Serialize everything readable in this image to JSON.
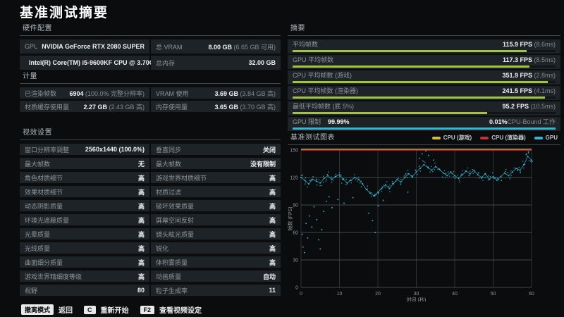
{
  "title": "基准测试摘要",
  "hardware": {
    "header": "硬件配置",
    "cells": [
      {
        "label": "GPU",
        "value": "NVIDIA GeForce RTX 2080 SUPER",
        "muted": ""
      },
      {
        "label": "总 VRAM",
        "value": "8.00 GB",
        "muted": "(6.65 GB 可用)"
      },
      {
        "label": "CPU",
        "value": "Intel(R) Core(TM) i5-9600KF CPU @ 3.70GHz",
        "muted": ""
      },
      {
        "label": "总内存",
        "value": "32.00 GB",
        "muted": ""
      }
    ]
  },
  "metrics": {
    "header": "计量",
    "cells": [
      {
        "label": "已渲染帧数",
        "value": "6904",
        "muted": "(100.0% 完整分辨率)"
      },
      {
        "label": "VRAM 使用",
        "value": "3.69 GB",
        "muted": "(3.84 GB 高)"
      },
      {
        "label": "材质缓存使用量",
        "value": "2.27 GB",
        "muted": "(2.43 GB 高)"
      },
      {
        "label": "内存使用量",
        "value": "3.65 GB",
        "muted": "(3.70 GB 高)"
      }
    ]
  },
  "settings": {
    "header": "视效设置",
    "left": [
      {
        "label": "窗口分辨率调整",
        "value": "2560x1440 (100.0%)"
      },
      {
        "label": "最大帧数",
        "value": "无"
      },
      {
        "label": "角色材质细节",
        "value": "高"
      },
      {
        "label": "效果材质细节",
        "value": "高"
      },
      {
        "label": "动态阴影质量",
        "value": "高"
      },
      {
        "label": "环境光遮蔽质量",
        "value": "高"
      },
      {
        "label": "光晕质量",
        "value": "高"
      },
      {
        "label": "光线质量",
        "value": "高"
      },
      {
        "label": "曲面细分质量",
        "value": "高"
      },
      {
        "label": "游戏世界精细度等级",
        "value": "高"
      },
      {
        "label": "视野",
        "value": "80"
      }
    ],
    "right": [
      {
        "label": "垂直同步",
        "value": "关闭"
      },
      {
        "label": "最大帧数",
        "value": "没有限制"
      },
      {
        "label": "游戏世界材质细节",
        "value": "高"
      },
      {
        "label": "材质过滤",
        "value": "高"
      },
      {
        "label": "破坏效果质量",
        "value": "高"
      },
      {
        "label": "屏幕空间反射",
        "value": "高"
      },
      {
        "label": "镜头眩光质量",
        "value": "高"
      },
      {
        "label": "锐化",
        "value": "高"
      },
      {
        "label": "体积雾质量",
        "value": "高"
      },
      {
        "label": "动画质量",
        "value": "自动"
      },
      {
        "label": "粒子生成率",
        "value": "11"
      }
    ]
  },
  "summary": {
    "header": "摘要",
    "rows": [
      {
        "label": "平均帧数",
        "value": "115.9 FPS",
        "muted": "(8.6ms)",
        "bar": 0.89,
        "color": "#a3c53d"
      },
      {
        "label": "GPU 平均帧数",
        "value": "117.3 FPS",
        "muted": "(8.5ms)",
        "bar": 0.9,
        "color": "#a3c53d"
      },
      {
        "label": "CPU 平均帧数 (游戏)",
        "value": "351.9 FPS",
        "muted": "(2.8ms)",
        "bar": 0.97,
        "color": "#a3c53d"
      },
      {
        "label": "CPU 平均帧数 (渲染器)",
        "value": "241.5 FPS",
        "muted": "(4.1ms)",
        "bar": 0.96,
        "color": "#a3c53d"
      },
      {
        "label": "最低平均帧数 (底 5%)",
        "value": "95.2 FPS",
        "muted": "(10.5ms)",
        "bar": 0.74,
        "color": "#a3c53d"
      }
    ],
    "footer": {
      "label": "GPU 限制",
      "value": "99.99%",
      "right_value": "0.01%",
      "right_muted": "CPU-Bound 工作",
      "bar": 1.0,
      "color": "#38b6d0"
    }
  },
  "chart_data": {
    "type": "line",
    "title": "基准测试图表",
    "xlabel": "时间 (秒)",
    "ylabel": "帧数 (FPS)",
    "xlim": [
      0,
      60
    ],
    "ylim": [
      0,
      150
    ],
    "xticks": [
      0,
      10,
      20,
      30,
      40,
      50,
      60
    ],
    "yticks": [
      0,
      30,
      60,
      90,
      120,
      150
    ],
    "grid": true,
    "legend_position": "top-right",
    "legend": [
      {
        "name": "CPU (游戏)",
        "color": "#d2b93f"
      },
      {
        "name": "CPU (渲染器)",
        "color": "#c1323a"
      },
      {
        "name": "GPU",
        "color": "#38b6d0"
      }
    ],
    "series": [
      {
        "name": "CPU (游戏)",
        "type": "clipped-line",
        "avg_fps": 351.9,
        "clip_at": 150,
        "color": "#d2b93f"
      },
      {
        "name": "CPU (渲染器)",
        "type": "clipped-line",
        "avg_fps": 241.5,
        "clip_at": 150,
        "color": "#c1323a"
      },
      {
        "name": "GPU",
        "type": "scatter-line",
        "color": "#38b6d0",
        "x": [
          0,
          1,
          2,
          3,
          4,
          5,
          6,
          7,
          8,
          9,
          10,
          11,
          12,
          13,
          14,
          15,
          16,
          17,
          18,
          19,
          20,
          21,
          22,
          23,
          24,
          25,
          26,
          27,
          28,
          29,
          30,
          31,
          32,
          33,
          34,
          35,
          36,
          37,
          38,
          39,
          40,
          41,
          42,
          43,
          44,
          45,
          46,
          47,
          48,
          49,
          50,
          51,
          52,
          53,
          54,
          55,
          56,
          57,
          58,
          59,
          60
        ],
        "values": [
          120,
          117,
          113,
          118,
          116,
          114,
          119,
          122,
          118,
          121,
          123,
          118,
          114,
          117,
          120,
          118,
          113,
          107,
          103,
          100,
          104,
          108,
          112,
          108,
          113,
          118,
          115,
          120,
          124,
          121,
          126,
          130,
          134,
          131,
          128,
          132,
          129,
          125,
          122,
          126,
          122,
          119,
          123,
          127,
          124,
          128,
          123,
          120,
          124,
          118,
          121,
          117,
          121,
          125,
          122,
          126,
          130,
          128,
          134,
          143,
          139
        ]
      }
    ],
    "gpu_outliers": [
      [
        0.3,
        58
      ],
      [
        0.5,
        44
      ],
      [
        0.9,
        38
      ],
      [
        1.3,
        70
      ],
      [
        1.7,
        54
      ],
      [
        2.2,
        78
      ],
      [
        2.8,
        66
      ],
      [
        3.4,
        88
      ],
      [
        4.1,
        74
      ],
      [
        4.6,
        52
      ],
      [
        5.0,
        42
      ],
      [
        5.4,
        63
      ],
      [
        5.9,
        83
      ],
      [
        6.6,
        94
      ],
      [
        7.3,
        99
      ],
      [
        8.1,
        87
      ],
      [
        9.6,
        96
      ],
      [
        11.2,
        92
      ],
      [
        13.5,
        98
      ],
      [
        17.6,
        81
      ],
      [
        18.6,
        73
      ],
      [
        19.3,
        60
      ],
      [
        20.1,
        89
      ],
      [
        21.4,
        95
      ],
      [
        27.8,
        104
      ],
      [
        30.8,
        141
      ],
      [
        31.5,
        146
      ],
      [
        32.5,
        149
      ],
      [
        33.2,
        144
      ],
      [
        34.5,
        139
      ],
      [
        58.6,
        145
      ],
      [
        59.2,
        148
      ]
    ]
  },
  "hints": [
    {
      "key": "撤离模式",
      "label": "返回"
    },
    {
      "key": "C",
      "label": "重新开始"
    },
    {
      "key": "F2",
      "label": "查看视频设定"
    }
  ],
  "colors": {
    "background": "#0a0c0d",
    "row": "#1e2327",
    "label": "#8d959b",
    "value": "#f0f3f4",
    "muted": "#838b91",
    "header": "#b3bac0",
    "bar_green": "#a3c53d",
    "bar_cyan": "#38b6d0",
    "line_red": "#c1323a",
    "line_yellow": "#d2b93f",
    "gpu_cyan": "#38b6d0",
    "grid_v": "#2c3237",
    "grid_h": "#555c61",
    "tick_text": "#9099a0"
  }
}
